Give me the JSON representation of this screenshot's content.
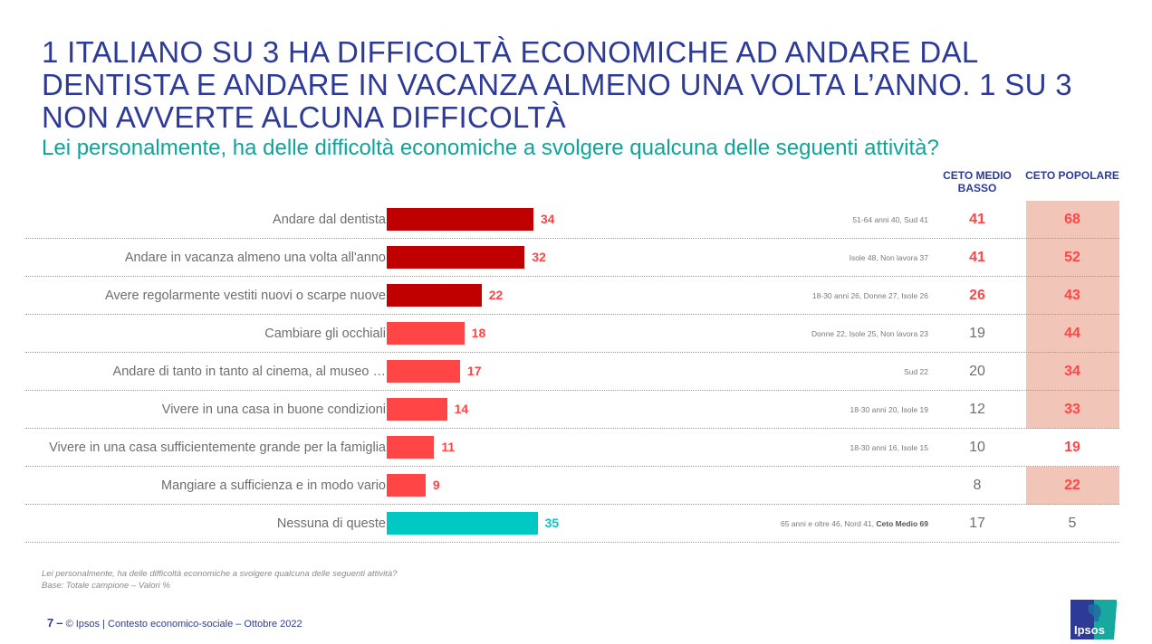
{
  "header": {
    "title": "1 ITALIANO SU 3 HA DIFFICOLTÀ ECONOMICHE AD ANDARE DAL DENTISTA E ANDARE IN VACANZA ALMENO UNA VOLTA L’ANNO. 1 SU 3 NON AVVERTE ALCUNA DIFFICOLTÀ",
    "subtitle": "Lei personalmente, ha delle difficoltà economiche a svolgere qualcuna delle seguenti attività?"
  },
  "columns": {
    "ceto_medio_basso": "CETO MEDIO BASSO",
    "ceto_popolare": "CETO POPOLARE"
  },
  "colors": {
    "dark_red": "#c00000",
    "light_red": "#ff4545",
    "teal": "#00c8c3",
    "highlight_bg": "#f2c5b9",
    "title_blue": "#2d3b97",
    "subtitle_teal": "#0fa39a"
  },
  "chart_data": {
    "type": "bar",
    "orientation": "horizontal",
    "title": "Lei personalmente, ha delle difficoltà economiche a svolgere qualcuna delle seguenti attività?",
    "unit": "%",
    "categories": [
      "Andare dal dentista",
      "Andare in vacanza almeno una volta all'anno",
      "Avere regolarmente vestiti nuovi o scarpe nuove",
      "Cambiare gli occhiali",
      "Andare di tanto in tanto al cinema, al museo …",
      "Vivere in una casa in buone condizioni",
      "Vivere in una casa sufficientemente grande per la famiglia",
      "Mangiare a sufficienza e in modo vario",
      "Nessuna di queste"
    ],
    "values": [
      34,
      32,
      22,
      18,
      17,
      14,
      11,
      9,
      35
    ],
    "bar_color_groups": [
      "dark",
      "dark",
      "dark",
      "light",
      "light",
      "light",
      "light",
      "light",
      "teal"
    ],
    "xlim": [
      0,
      35
    ],
    "notes": [
      {
        "text": "51-64 anni 40, Sud 41"
      },
      {
        "text": "Isole 48, Non lavora 37"
      },
      {
        "text": "18-30 anni 26, Donne 27, Isole 26"
      },
      {
        "text": "Donne 22, Isole 25, Non lavora 23"
      },
      {
        "text": "Sud 22"
      },
      {
        "text": "18-30 anni 20, Isole 19"
      },
      {
        "text": "18-30 anni 16, Isole 15"
      },
      {
        "text": ""
      },
      {
        "text": "65 anni e oltre 46, Nord 41, ",
        "bold": "Ceto Medio 69"
      }
    ],
    "ceto_medio_basso": [
      41,
      41,
      26,
      19,
      20,
      12,
      10,
      8,
      17
    ],
    "ceto_medio_basso_highlight": [
      true,
      true,
      true,
      false,
      false,
      false,
      false,
      false,
      false
    ],
    "ceto_popolare": [
      68,
      52,
      43,
      44,
      34,
      33,
      19,
      22,
      5
    ],
    "ceto_popolare_highlight": [
      true,
      true,
      true,
      true,
      true,
      true,
      true,
      true,
      false
    ],
    "ceto_popolare_shaded": [
      true,
      true,
      true,
      true,
      true,
      true,
      false,
      true,
      false
    ]
  },
  "footnote": {
    "line1": "Lei personalmente, ha delle difficoltà economiche a svolgere qualcuna delle seguenti attività?",
    "line2": "Base: Totale campione – Valori %"
  },
  "footer": {
    "page": "7",
    "dash": "–",
    "text": "© Ipsos | Contesto economico-sociale –   Ottobre 2022"
  },
  "logo": {
    "text": "Ipsos"
  }
}
